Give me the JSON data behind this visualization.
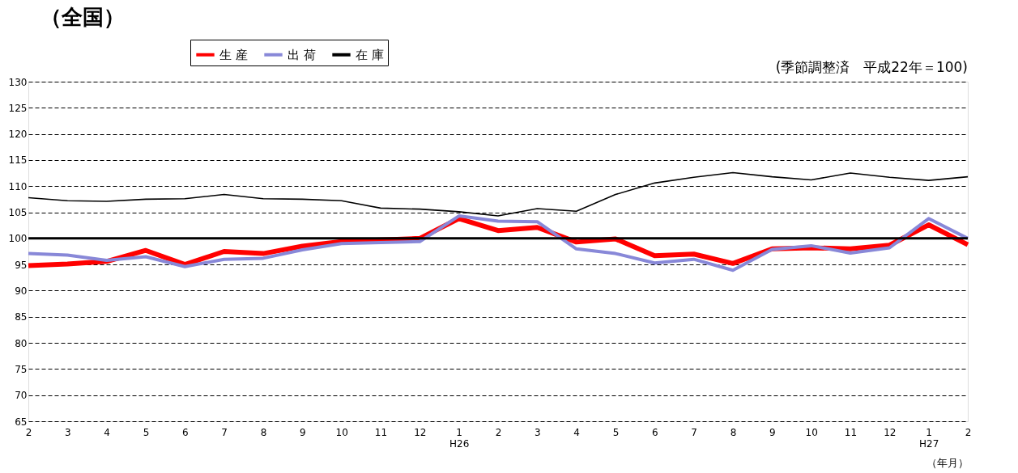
{
  "chart_data": {
    "type": "line",
    "title": "（全国）",
    "annotations": [
      "(季節調整済　平成22年＝100)"
    ],
    "xlabel": "（年月）",
    "categories": [
      "2",
      "3",
      "4",
      "5",
      "6",
      "7",
      "8",
      "9",
      "10",
      "11",
      "12",
      "1\nH26",
      "2",
      "3",
      "4",
      "5",
      "6",
      "7",
      "8",
      "9",
      "10",
      "11",
      "12",
      "1\nH27",
      "2"
    ],
    "series": [
      {
        "name": "生 産",
        "color": "#ff0000",
        "values": [
          94.8,
          95.1,
          95.6,
          97.7,
          95.0,
          97.5,
          97.1,
          98.5,
          99.4,
          99.7,
          100.0,
          103.8,
          101.5,
          102.1,
          99.3,
          99.9,
          96.7,
          97.0,
          95.2,
          98.0,
          98.2,
          98.0,
          98.7,
          102.6,
          98.8
        ]
      },
      {
        "name": "出 荷",
        "color": "#8888d8",
        "values": [
          97.1,
          96.8,
          95.8,
          96.5,
          94.6,
          96.0,
          96.2,
          97.8,
          99.0,
          99.2,
          99.4,
          104.3,
          103.3,
          103.2,
          98.0,
          97.1,
          95.3,
          96.0,
          93.9,
          97.9,
          98.6,
          97.2,
          98.2,
          103.8,
          100.0
        ]
      },
      {
        "name": "在 庫",
        "color": "#000000",
        "values": [
          107.8,
          107.2,
          107.1,
          107.5,
          107.6,
          108.4,
          107.6,
          107.5,
          107.2,
          105.8,
          105.6,
          105.1,
          104.3,
          105.7,
          105.2,
          108.4,
          110.6,
          111.7,
          112.6,
          111.8,
          111.2,
          112.5,
          111.7,
          111.1,
          111.8
        ]
      }
    ],
    "ylim": [
      65,
      130
    ],
    "yticks": [
      65,
      70,
      75,
      80,
      85,
      90,
      95,
      100,
      105,
      110,
      115,
      120,
      125,
      130
    ],
    "ref_lines": [
      {
        "axis": "y",
        "value": 100,
        "color": "#000000"
      }
    ],
    "grid": "y",
    "legend": "top",
    "marker": "none",
    "line_style": "solid"
  }
}
